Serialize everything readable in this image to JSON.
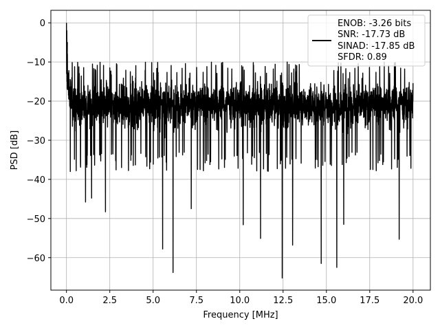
{
  "chart_data": {
    "type": "line",
    "title": "",
    "xlabel": "Frequency [MHz]",
    "ylabel": "PSD [dB]",
    "xlim": [
      -0.9,
      21.0
    ],
    "ylim": [
      -68.3,
      3.2
    ],
    "xticks": [
      0.0,
      2.5,
      5.0,
      7.5,
      10.0,
      12.5,
      15.0,
      17.5,
      20.0
    ],
    "xtick_labels": [
      "0.0",
      "2.5",
      "5.0",
      "7.5",
      "10.0",
      "12.5",
      "15.0",
      "17.5",
      "20.0"
    ],
    "yticks": [
      0,
      -10,
      -20,
      -30,
      -40,
      -50,
      -60
    ],
    "ytick_labels": [
      "0",
      "−10",
      "−20",
      "−30",
      "−40",
      "−50",
      "−60"
    ],
    "grid": true,
    "legend_position": "top-right",
    "legend": {
      "line_color": "#000000",
      "lines": [
        "ENOB: -3.26 bits",
        "SNR: -17.73 dB",
        "SINAD: -17.85 dB",
        "SFDR: 0.89"
      ]
    },
    "series": [
      {
        "color": "#000000",
        "x_range": [
          0.0,
          20.0
        ],
        "baseline_db": -21,
        "upper_envelope_db": -12,
        "lower_typical_db": -33,
        "peak": {
          "x": 0.0,
          "y": 0.0
        },
        "notable_dips": [
          {
            "x": 0.22,
            "y": -38
          },
          {
            "x": 1.1,
            "y": -45.8
          },
          {
            "x": 1.45,
            "y": -44.8
          },
          {
            "x": 2.25,
            "y": -48.3
          },
          {
            "x": 5.55,
            "y": -57.8
          },
          {
            "x": 6.15,
            "y": -63.8
          },
          {
            "x": 7.2,
            "y": -47.5
          },
          {
            "x": 10.2,
            "y": -51.6
          },
          {
            "x": 11.2,
            "y": -55.1
          },
          {
            "x": 12.45,
            "y": -65.2
          },
          {
            "x": 13.05,
            "y": -56.8
          },
          {
            "x": 14.7,
            "y": -61.5
          },
          {
            "x": 15.6,
            "y": -62.5
          },
          {
            "x": 16.0,
            "y": -51.5
          },
          {
            "x": 19.2,
            "y": -55.3
          }
        ]
      }
    ]
  }
}
